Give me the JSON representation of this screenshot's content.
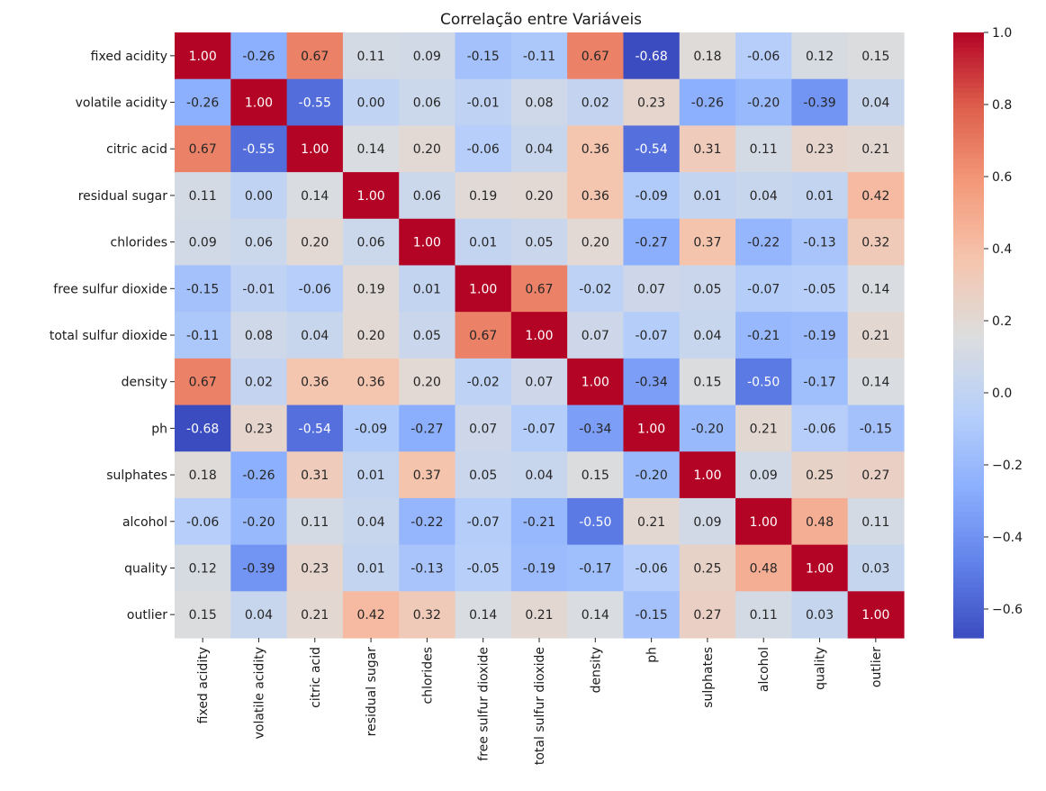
{
  "chart_data": {
    "type": "heatmap",
    "title": "Correlação entre Variáveis",
    "xlabel": "",
    "ylabel": "",
    "colormap": "coolwarm",
    "vmin": -0.68,
    "vmax": 1.0,
    "variables": [
      "fixed acidity",
      "volatile acidity",
      "citric acid",
      "residual sugar",
      "chlorides",
      "free sulfur dioxide",
      "total sulfur dioxide",
      "density",
      "ph",
      "sulphates",
      "alcohol",
      "quality",
      "outlier"
    ],
    "matrix": [
      [
        1.0,
        -0.26,
        0.67,
        0.11,
        0.09,
        -0.15,
        -0.11,
        0.67,
        -0.68,
        0.18,
        -0.06,
        0.12,
        0.15
      ],
      [
        -0.26,
        1.0,
        -0.55,
        0.0,
        0.06,
        -0.01,
        0.08,
        0.02,
        0.23,
        -0.26,
        -0.2,
        -0.39,
        0.04
      ],
      [
        0.67,
        -0.55,
        1.0,
        0.14,
        0.2,
        -0.06,
        0.04,
        0.36,
        -0.54,
        0.31,
        0.11,
        0.23,
        0.21
      ],
      [
        0.11,
        0.0,
        0.14,
        1.0,
        0.06,
        0.19,
        0.2,
        0.36,
        -0.09,
        0.01,
        0.04,
        0.01,
        0.42
      ],
      [
        0.09,
        0.06,
        0.2,
        0.06,
        1.0,
        0.01,
        0.05,
        0.2,
        -0.27,
        0.37,
        -0.22,
        -0.13,
        0.32
      ],
      [
        -0.15,
        -0.01,
        -0.06,
        0.19,
        0.01,
        1.0,
        0.67,
        -0.02,
        0.07,
        0.05,
        -0.07,
        -0.05,
        0.14
      ],
      [
        -0.11,
        0.08,
        0.04,
        0.2,
        0.05,
        0.67,
        1.0,
        0.07,
        -0.07,
        0.04,
        -0.21,
        -0.19,
        0.21
      ],
      [
        0.67,
        0.02,
        0.36,
        0.36,
        0.2,
        -0.02,
        0.07,
        1.0,
        -0.34,
        0.15,
        -0.5,
        -0.17,
        0.14
      ],
      [
        -0.68,
        0.23,
        -0.54,
        -0.09,
        -0.27,
        0.07,
        -0.07,
        -0.34,
        1.0,
        -0.2,
        0.21,
        -0.06,
        -0.15
      ],
      [
        0.18,
        -0.26,
        0.31,
        0.01,
        0.37,
        0.05,
        0.04,
        0.15,
        -0.2,
        1.0,
        0.09,
        0.25,
        0.27
      ],
      [
        -0.06,
        -0.2,
        0.11,
        0.04,
        -0.22,
        -0.07,
        -0.21,
        -0.5,
        0.21,
        0.09,
        1.0,
        0.48,
        0.11
      ],
      [
        0.12,
        -0.39,
        0.23,
        0.01,
        -0.13,
        -0.05,
        -0.19,
        -0.17,
        -0.06,
        0.25,
        0.48,
        1.0,
        0.03
      ],
      [
        0.15,
        0.04,
        0.21,
        0.42,
        0.32,
        0.14,
        0.21,
        0.14,
        -0.15,
        0.27,
        0.11,
        0.03,
        1.0
      ]
    ],
    "colorbar_ticks": [
      1.0,
      0.8,
      0.6,
      0.4,
      0.2,
      0.0,
      -0.2,
      -0.4,
      -0.6
    ],
    "colorbar_tick_labels": [
      "1.0",
      "0.8",
      "0.6",
      "0.4",
      "0.2",
      "0.0",
      "−0.2",
      "−0.4",
      "−0.6"
    ],
    "annotation_format": "0.00"
  }
}
